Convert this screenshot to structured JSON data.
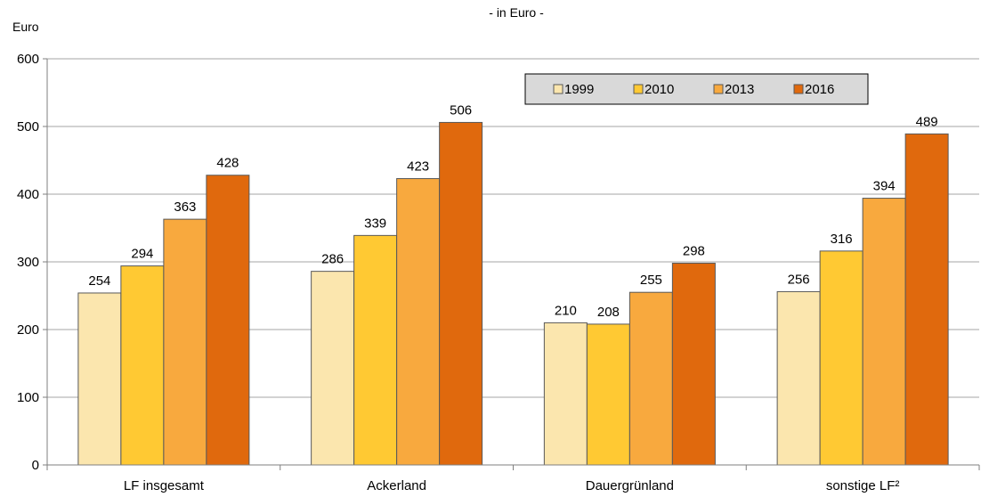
{
  "chart_data": {
    "type": "bar",
    "subtitle": "- in Euro -",
    "ylabel": "Euro",
    "categories": [
      "LF insgesamt",
      "Ackerland",
      "Dauergrünland",
      "sonstige LF²"
    ],
    "series": [
      {
        "name": "1999",
        "color": "#FBE6AE",
        "values": [
          254,
          286,
          210,
          256
        ]
      },
      {
        "name": "2010",
        "color": "#FFC933",
        "values": [
          294,
          339,
          208,
          316
        ]
      },
      {
        "name": "2013",
        "color": "#F8A93E",
        "values": [
          363,
          423,
          255,
          394
        ]
      },
      {
        "name": "2016",
        "color": "#E0690D",
        "values": [
          428,
          506,
          298,
          489
        ]
      }
    ],
    "ylim": [
      0,
      600
    ],
    "yticks": [
      0,
      100,
      200,
      300,
      400,
      500,
      600
    ],
    "grid": true,
    "data_labels": true,
    "legend_position": "top-right"
  }
}
